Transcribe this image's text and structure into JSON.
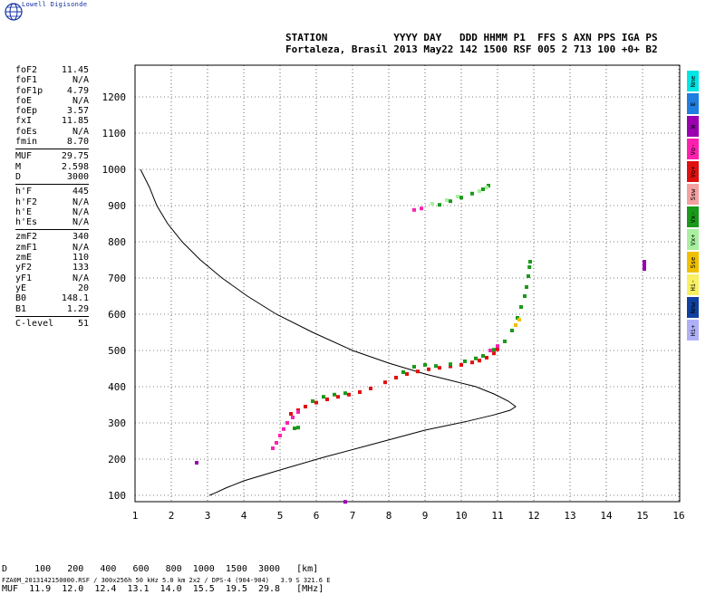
{
  "brand": "Lowell Digisonde",
  "header": {
    "line1": "STATION           YYYY DAY   DDD HHMM P1  FFS S AXN PPS IGA PS",
    "line2": "Fortaleza, Brasil 2013 May22 142 1500 RSF 005 2 713 100 +0+ B2"
  },
  "params": [
    {
      "label": "foF2",
      "value": "11.45"
    },
    {
      "label": "foF1",
      "value": "N/A"
    },
    {
      "label": "foF1p",
      "value": "4.79"
    },
    {
      "label": "foE",
      "value": "N/A"
    },
    {
      "label": "foEp",
      "value": "3.57"
    },
    {
      "label": "fxI",
      "value": "11.85"
    },
    {
      "label": "foEs",
      "value": "N/A"
    },
    {
      "label": "fmin",
      "value": "8.70"
    },
    {
      "label": "MUF",
      "value": "29.75"
    },
    {
      "label": "M",
      "value": "2.598"
    },
    {
      "label": "D",
      "value": "3000"
    },
    {
      "label": "h'F",
      "value": "445"
    },
    {
      "label": "h'F2",
      "value": "N/A"
    },
    {
      "label": "h'E",
      "value": "N/A"
    },
    {
      "label": "h'Es",
      "value": "N/A"
    },
    {
      "label": "zmF2",
      "value": "340"
    },
    {
      "label": "zmF1",
      "value": "N/A"
    },
    {
      "label": "zmE",
      "value": "110"
    },
    {
      "label": "yF2",
      "value": "133"
    },
    {
      "label": "yF1",
      "value": "N/A"
    },
    {
      "label": "yE",
      "value": "20"
    },
    {
      "label": "B0",
      "value": "148.1"
    },
    {
      "label": "B1",
      "value": "1.29"
    },
    {
      "label": "C-level",
      "value": "51"
    }
  ],
  "legend": [
    {
      "label": "Nne",
      "color": "#00e5e5"
    },
    {
      "label": "E",
      "color": "#1f7ee0"
    },
    {
      "label": "W",
      "color": "#9a00b0"
    },
    {
      "label": "Vo-",
      "color": "#ff20b0"
    },
    {
      "label": "Vo+",
      "color": "#e01010"
    },
    {
      "label": "Ssw",
      "color": "#f4a0a0"
    },
    {
      "label": "Vx-",
      "color": "#1a9a1a"
    },
    {
      "label": "Vx+",
      "color": "#a8f0a0"
    },
    {
      "label": "Sse",
      "color": "#f0c000"
    },
    {
      "label": "Hi-",
      "color": "#f8f060"
    },
    {
      "label": "Nnw",
      "color": "#1040a0"
    },
    {
      "label": "Hi+",
      "color": "#b0b0f8"
    }
  ],
  "muf_table": {
    "row1": "D     100   200   400   600   800  1000  1500  3000   [km]",
    "row2": "MUF  11.9  12.0  12.4  13.1  14.0  15.5  19.5  29.8   [MHz]"
  },
  "footer": "FZA0M_2013142150000.RSF / 300x256h 50 kHz 5.0 km 2x2 / DPS-4 (904-904)   3.9 S 321.6 E",
  "chart_data": {
    "type": "scatter",
    "title": "",
    "xlabel": "",
    "ylabel": "",
    "xlim": [
      1,
      16
    ],
    "ylim": [
      60,
      1300
    ],
    "x_ticks": [
      1,
      2,
      3,
      4,
      5,
      6,
      7,
      8,
      9,
      10,
      11,
      12,
      13,
      14,
      15,
      16
    ],
    "y_ticks": [
      100,
      200,
      300,
      400,
      500,
      600,
      700,
      800,
      900,
      1000,
      1100,
      1200
    ],
    "grid": true,
    "profile": {
      "name": "",
      "color": "#000000",
      "points": [
        [
          1.15,
          1000
        ],
        [
          1.25,
          980
        ],
        [
          1.4,
          950
        ],
        [
          1.6,
          900
        ],
        [
          1.9,
          850
        ],
        [
          2.3,
          800
        ],
        [
          2.8,
          750
        ],
        [
          3.4,
          700
        ],
        [
          4.1,
          650
        ],
        [
          4.9,
          600
        ],
        [
          5.9,
          550
        ],
        [
          7.0,
          500
        ],
        [
          8.0,
          465
        ],
        [
          9.0,
          435
        ],
        [
          9.8,
          415
        ],
        [
          10.4,
          400
        ],
        [
          10.9,
          380
        ],
        [
          11.3,
          360
        ],
        [
          11.5,
          345
        ],
        [
          11.35,
          335
        ],
        [
          10.9,
          322
        ],
        [
          10.1,
          303
        ],
        [
          9.0,
          280
        ],
        [
          7.7,
          245
        ],
        [
          6.2,
          205
        ],
        [
          5.0,
          170
        ],
        [
          4.0,
          140
        ],
        [
          3.5,
          120
        ],
        [
          3.2,
          106
        ],
        [
          3.05,
          100
        ]
      ]
    },
    "traces": [
      {
        "name": "Vo+",
        "color": "#e01010",
        "points": [
          [
            5.3,
            325
          ],
          [
            5.5,
            335
          ],
          [
            5.7,
            345
          ],
          [
            6.0,
            356
          ],
          [
            6.3,
            365
          ],
          [
            6.6,
            372
          ],
          [
            6.9,
            378
          ],
          [
            7.2,
            385
          ],
          [
            7.5,
            395
          ],
          [
            7.9,
            412
          ],
          [
            8.2,
            425
          ],
          [
            8.5,
            435
          ],
          [
            8.8,
            442
          ],
          [
            9.1,
            448
          ],
          [
            9.4,
            452
          ],
          [
            9.7,
            456
          ],
          [
            10.0,
            460
          ],
          [
            10.3,
            467
          ],
          [
            10.5,
            472
          ],
          [
            10.7,
            480
          ],
          [
            10.9,
            492
          ],
          [
            11.0,
            503
          ]
        ]
      },
      {
        "name": "Vo-",
        "color": "#ff20b0",
        "points": [
          [
            4.8,
            230
          ],
          [
            4.9,
            245
          ],
          [
            5.0,
            265
          ],
          [
            5.1,
            283
          ],
          [
            5.2,
            300
          ],
          [
            5.35,
            315
          ],
          [
            5.5,
            330
          ],
          [
            10.8,
            500
          ],
          [
            11.0,
            512
          ],
          [
            8.7,
            888
          ],
          [
            8.9,
            892
          ]
        ]
      },
      {
        "name": "Vx-",
        "color": "#1a9a1a",
        "points": [
          [
            5.4,
            285
          ],
          [
            5.5,
            287
          ],
          [
            5.9,
            360
          ],
          [
            6.2,
            372
          ],
          [
            6.5,
            378
          ],
          [
            6.8,
            382
          ],
          [
            8.4,
            440
          ],
          [
            8.7,
            455
          ],
          [
            9.0,
            460
          ],
          [
            9.3,
            457
          ],
          [
            9.7,
            462
          ],
          [
            10.1,
            470
          ],
          [
            10.4,
            478
          ],
          [
            10.6,
            485
          ],
          [
            10.9,
            502
          ],
          [
            11.2,
            525
          ],
          [
            11.4,
            555
          ],
          [
            11.55,
            590
          ],
          [
            11.65,
            620
          ],
          [
            11.75,
            650
          ],
          [
            11.8,
            675
          ],
          [
            11.85,
            705
          ],
          [
            11.88,
            730
          ],
          [
            11.9,
            745
          ],
          [
            9.4,
            902
          ],
          [
            9.7,
            912
          ],
          [
            10.0,
            922
          ],
          [
            10.3,
            933
          ],
          [
            10.6,
            945
          ],
          [
            10.75,
            955
          ]
        ]
      },
      {
        "name": "Vx+",
        "color": "#a8f0a0",
        "points": [
          [
            9.2,
            905
          ],
          [
            9.6,
            915
          ],
          [
            9.9,
            925
          ],
          [
            10.5,
            940
          ],
          [
            10.7,
            950
          ]
        ]
      },
      {
        "name": "Sse",
        "color": "#f0c000",
        "points": [
          [
            11.5,
            570
          ],
          [
            11.6,
            585
          ]
        ]
      },
      {
        "name": "W",
        "color": "#9a00b0",
        "points": [
          [
            2.7,
            190
          ],
          [
            6.8,
            82
          ],
          [
            15.05,
            745
          ],
          [
            15.05,
            735
          ],
          [
            15.05,
            725
          ]
        ]
      }
    ]
  }
}
